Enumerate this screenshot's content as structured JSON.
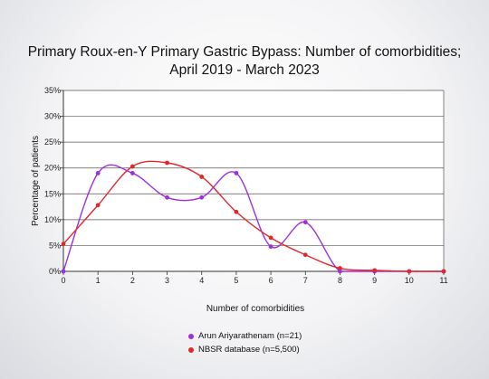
{
  "chart_data": {
    "type": "line",
    "title_line1": "Primary Roux-en-Y Primary Gastric Bypass: Number of comorbidities;",
    "title_line2": "April 2019 - March 2023",
    "xlabel": "Number of comorbidities",
    "ylabel": "Percentage of patients",
    "x": [
      0,
      1,
      2,
      3,
      4,
      5,
      6,
      7,
      8,
      9,
      10,
      11
    ],
    "xticks": [
      "0",
      "1",
      "2",
      "3",
      "4",
      "5",
      "6",
      "7",
      "8",
      "9",
      "10",
      "11"
    ],
    "yticks": [
      "0%",
      "5%",
      "10%",
      "15%",
      "20%",
      "25%",
      "30%",
      "35%"
    ],
    "ylim": [
      0,
      35
    ],
    "grid": true,
    "legend_position": "bottom",
    "series": [
      {
        "name": "Arun Ariyarathenam (n=21)",
        "color": "#9b30e0",
        "values": [
          0,
          19.0,
          19.0,
          14.3,
          14.3,
          19.0,
          4.8,
          9.5,
          0,
          0,
          0,
          0
        ]
      },
      {
        "name": "NBSR database (n=5,500)",
        "color": "#e0282c",
        "values": [
          5.3,
          12.8,
          20.3,
          21.0,
          18.3,
          11.5,
          6.5,
          3.2,
          0.6,
          0.2,
          0,
          0
        ]
      }
    ]
  }
}
